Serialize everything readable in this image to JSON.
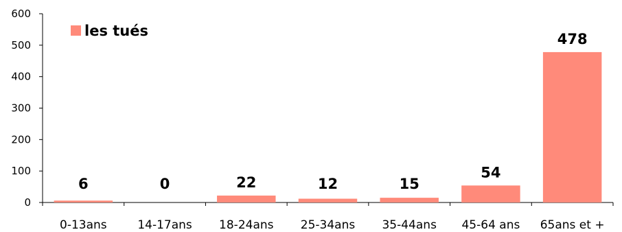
{
  "chart_data": {
    "type": "bar",
    "categories": [
      "0-13ans",
      "14-17ans",
      "18-24ans",
      "25-34ans",
      "35-44ans",
      "45-64 ans",
      "65ans et +"
    ],
    "series": [
      {
        "name": "les tués",
        "values": [
          6,
          0,
          22,
          12,
          15,
          54,
          478
        ]
      }
    ],
    "data_labels": [
      "6",
      "0",
      "22",
      "12",
      "15",
      "54",
      "478"
    ],
    "yticks": [
      "0",
      "100",
      "200",
      "300",
      "400",
      "500",
      "600"
    ],
    "ylim": [
      0,
      600
    ],
    "grid": false,
    "legend_position": "top-left",
    "colors": {
      "bar": "#ff8a7a",
      "axis": "#000000"
    }
  }
}
